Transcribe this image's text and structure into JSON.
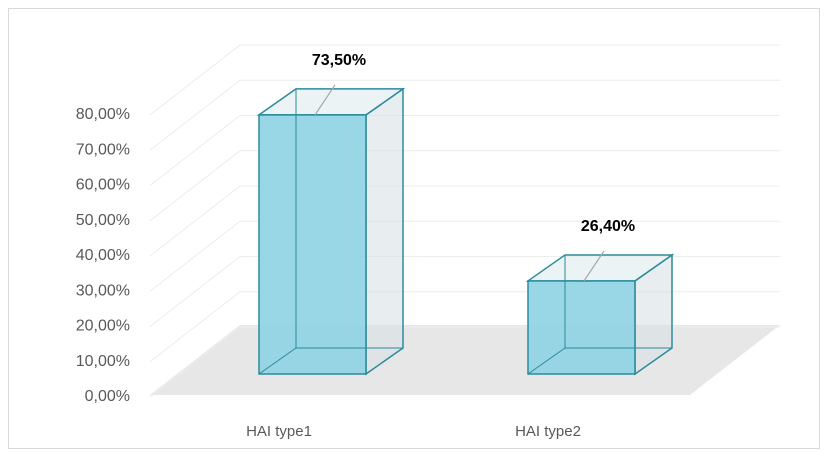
{
  "chart_data": {
    "type": "bar",
    "categories": [
      "HAI type1",
      "HAI type2"
    ],
    "values": [
      73.5,
      26.4
    ],
    "value_labels": [
      "73,50%",
      "26,40%"
    ],
    "color": "#8fd3e3",
    "ylim": [
      0,
      80
    ],
    "yticks": [
      {
        "value": 0,
        "label": "0,00%"
      },
      {
        "value": 10,
        "label": "10,00%"
      },
      {
        "value": 20,
        "label": "20,00%"
      },
      {
        "value": 30,
        "label": "30,00%"
      },
      {
        "value": 40,
        "label": "40,00%"
      },
      {
        "value": 50,
        "label": "50,00%"
      },
      {
        "value": 60,
        "label": "60,00%"
      },
      {
        "value": 70,
        "label": "70,00%"
      },
      {
        "value": 80,
        "label": "80,00%"
      }
    ],
    "grid": true
  }
}
